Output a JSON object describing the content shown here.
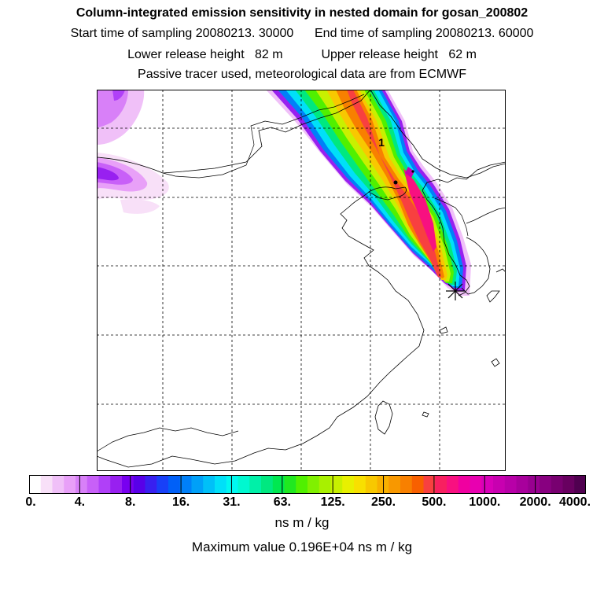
{
  "header": {
    "title": "Column-integrated emission sensitivity in nested domain for gosan_200802",
    "start_label": "Start time of sampling 20080213. 30000",
    "end_label": "End time of sampling 20080213. 60000",
    "lower_label": "Lower release height   82 m",
    "upper_label": "Upper release height   62 m",
    "tracer_line": "Passive tracer used, meteorological data are from ECMWF"
  },
  "map": {
    "cluster_label": "1",
    "receptor_marker": "star-icon"
  },
  "colorbar": {
    "tick_labels": [
      "0.",
      "4.",
      "8.",
      "16.",
      "31.",
      "63.",
      "125.",
      "250.",
      "500.",
      "1000.",
      "2000.",
      "4000."
    ],
    "colors": [
      "#ffffff",
      "#f8e0f8",
      "#f0c0f8",
      "#e8a0f8",
      "#d880f8",
      "#c860f8",
      "#b040f8",
      "#9820f0",
      "#7800f0",
      "#5800e8",
      "#3820f0",
      "#1840f8",
      "#0060f8",
      "#0080f8",
      "#00a0f8",
      "#00c0f8",
      "#00e0f8",
      "#00f8f0",
      "#00f8d0",
      "#00f0a8",
      "#00e880",
      "#00e850",
      "#20e820",
      "#50f000",
      "#80f000",
      "#a8f000",
      "#c8f000",
      "#e8f000",
      "#f8e000",
      "#f8c800",
      "#f8b000",
      "#f89800",
      "#f88000",
      "#f86000",
      "#f84040",
      "#f82060",
      "#f81080",
      "#f000a0",
      "#e800b0",
      "#d800b8",
      "#c800b0",
      "#b800a8",
      "#a8009c",
      "#980090",
      "#880080",
      "#780070",
      "#680060",
      "#500050"
    ],
    "units": "ns m / kg",
    "max_label": "Maximum value  0.196E+04 ns m / kg"
  }
}
